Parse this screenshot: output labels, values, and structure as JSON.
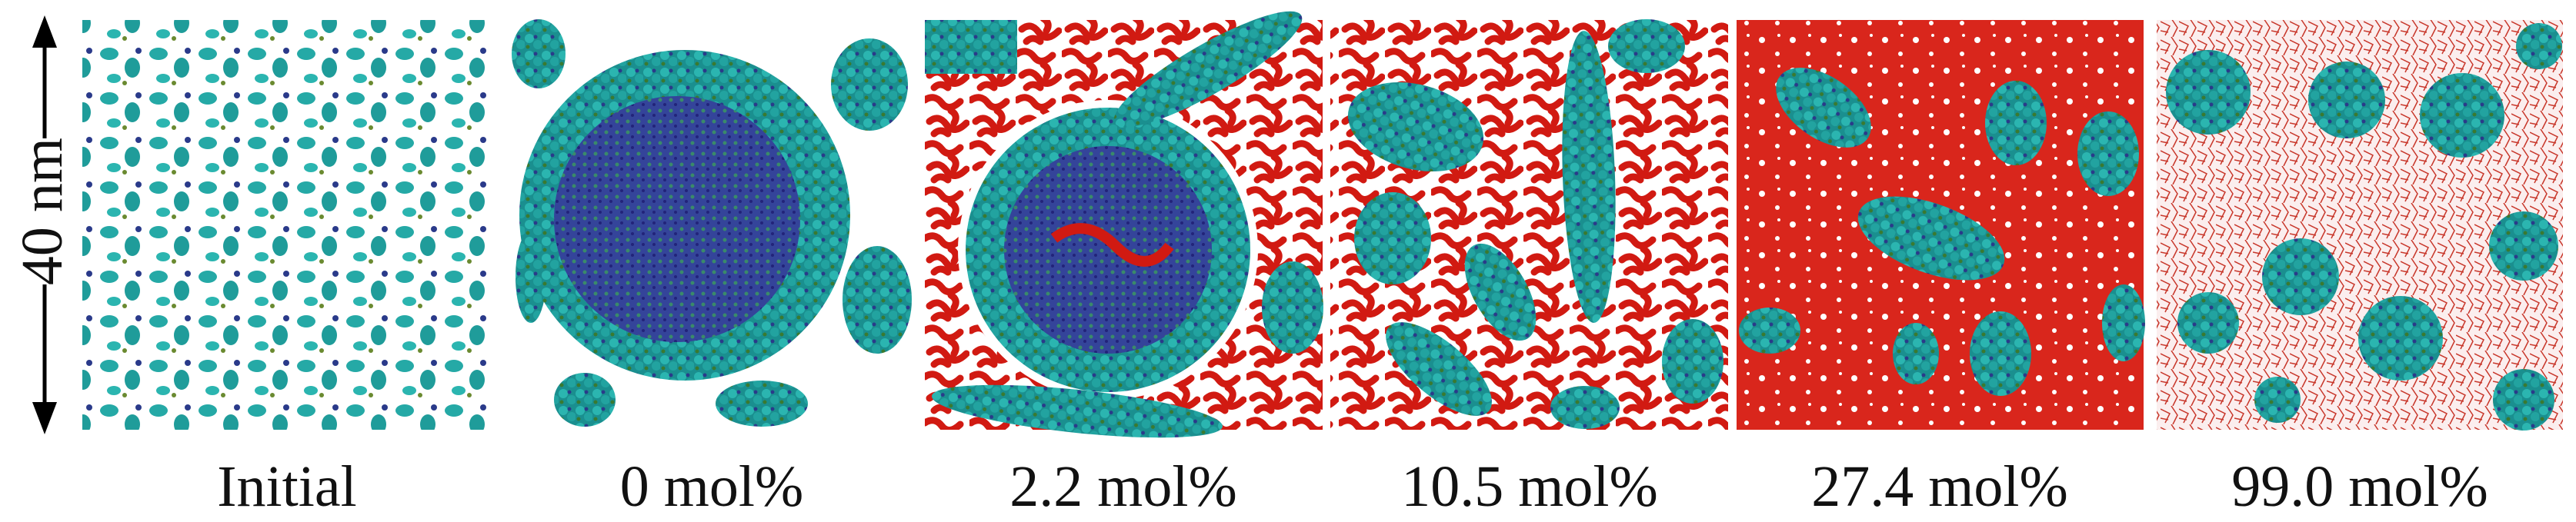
{
  "scale_bar": {
    "label": "40 nm"
  },
  "panels": [
    {
      "label": "Initial"
    },
    {
      "label": "0 mol%"
    },
    {
      "label": "2.2 mol%"
    },
    {
      "label": "10.5 mol%"
    },
    {
      "label": "27.4 mol%"
    },
    {
      "label": "99.0 mol%"
    }
  ]
}
